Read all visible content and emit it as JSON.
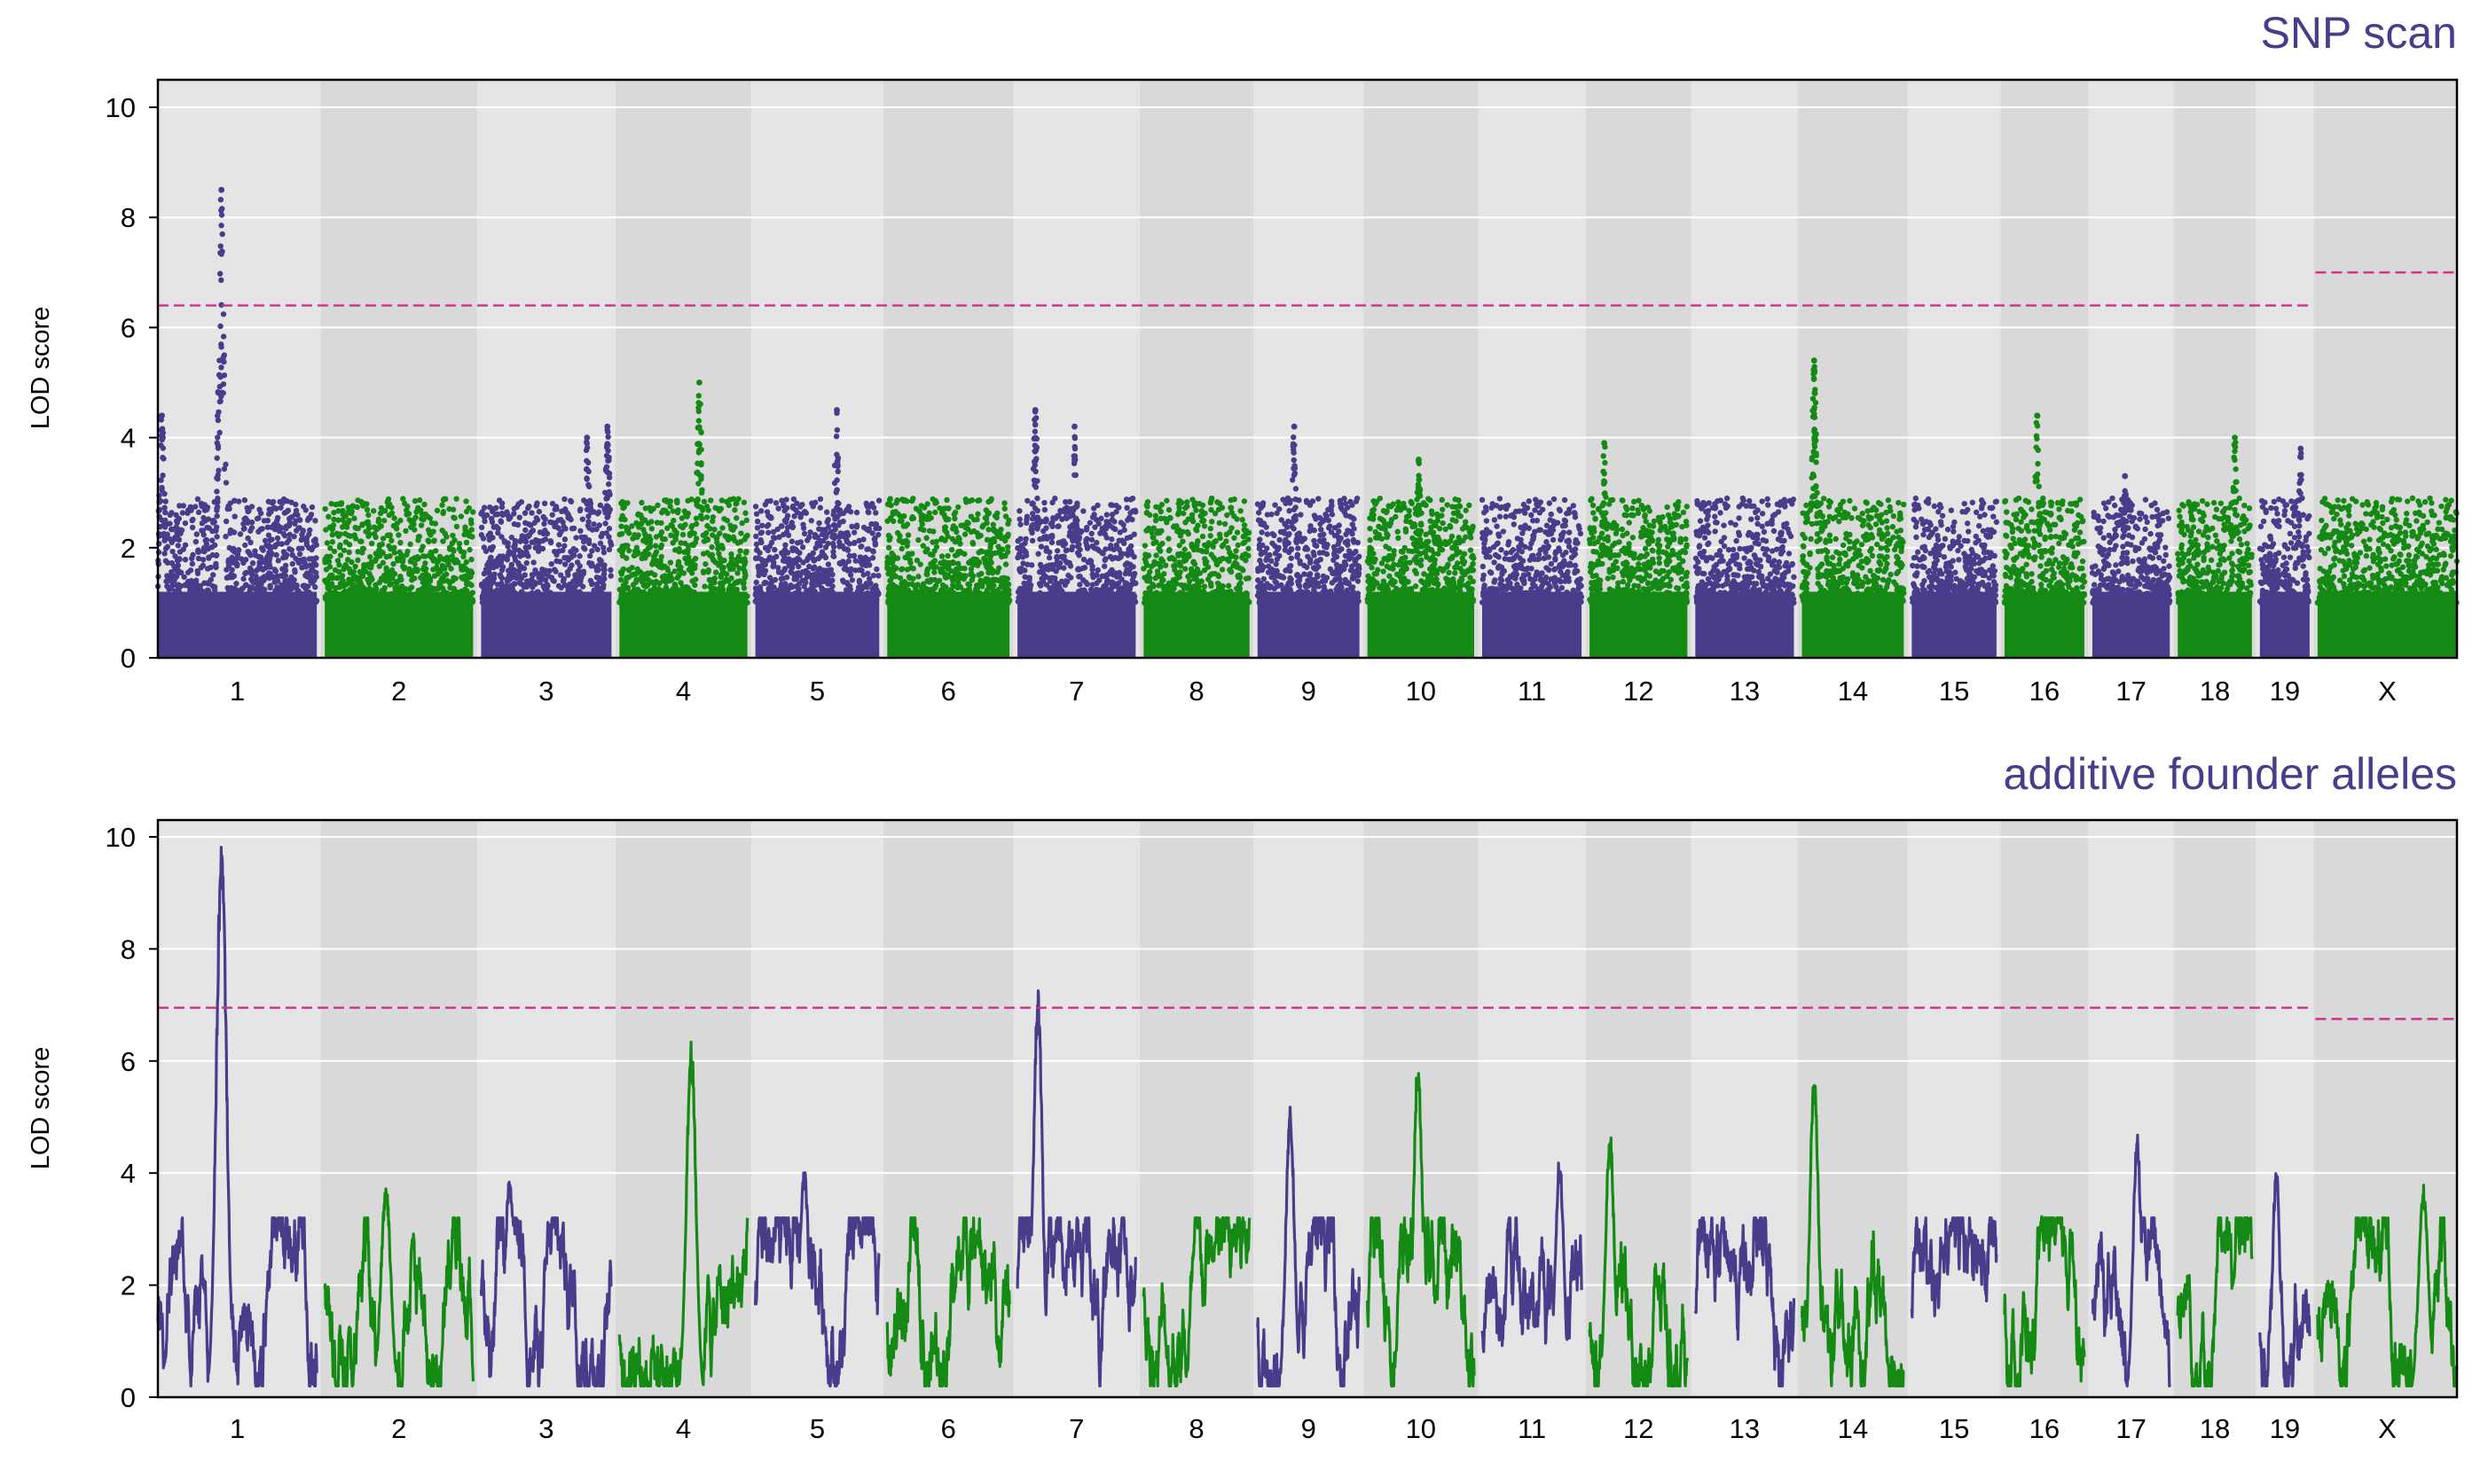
{
  "colors": {
    "purple": "#483D8B",
    "green": "#148A14",
    "threshold": "#D0308C",
    "panel_light": "#E5E5E5",
    "panel_dark": "#D9D9D9",
    "title": "#483D8B"
  },
  "chart_data": [
    {
      "type": "scatter",
      "title": "SNP scan",
      "ylabel": "LOD score",
      "xlabel": "",
      "ylim": [
        0,
        10.5
      ],
      "yticks": [
        0,
        2,
        4,
        6,
        8,
        10
      ],
      "grid": true,
      "chromosomes": [
        "1",
        "2",
        "3",
        "4",
        "5",
        "6",
        "7",
        "8",
        "9",
        "10",
        "11",
        "12",
        "13",
        "14",
        "15",
        "16",
        "17",
        "18",
        "19",
        "X"
      ],
      "chrom_lengths": [
        195,
        182,
        160,
        157,
        152,
        150,
        145,
        130,
        125,
        131,
        122,
        120,
        121,
        125,
        104,
        98,
        95,
        91,
        61,
        171
      ],
      "series_colors": [
        "purple",
        "green"
      ],
      "thresholds": {
        "autosome": 6.4,
        "X": 7.0
      },
      "peaks": [
        {
          "chrom": "1",
          "pos": 78,
          "lod": 8.5
        },
        {
          "chrom": "1",
          "pos": 5,
          "lod": 4.4
        },
        {
          "chrom": "3",
          "pos": 130,
          "lod": 4.0
        },
        {
          "chrom": "3",
          "pos": 155,
          "lod": 4.2
        },
        {
          "chrom": "4",
          "pos": 98,
          "lod": 5.0
        },
        {
          "chrom": "5",
          "pos": 100,
          "lod": 4.5
        },
        {
          "chrom": "7",
          "pos": 22,
          "lod": 4.5
        },
        {
          "chrom": "7",
          "pos": 70,
          "lod": 4.2
        },
        {
          "chrom": "9",
          "pos": 45,
          "lod": 4.2
        },
        {
          "chrom": "10",
          "pos": 63,
          "lod": 3.6
        },
        {
          "chrom": "12",
          "pos": 18,
          "lod": 3.9
        },
        {
          "chrom": "14",
          "pos": 15,
          "lod": 5.4
        },
        {
          "chrom": "16",
          "pos": 40,
          "lod": 4.4
        },
        {
          "chrom": "17",
          "pos": 40,
          "lod": 3.3
        },
        {
          "chrom": "18",
          "pos": 70,
          "lod": 4.0
        },
        {
          "chrom": "19",
          "pos": 50,
          "lod": 3.8
        }
      ]
    },
    {
      "type": "line",
      "title": "additive founder alleles",
      "ylabel": "LOD score",
      "xlabel": "",
      "ylim": [
        0,
        10.3
      ],
      "yticks": [
        0,
        2,
        4,
        6,
        8,
        10
      ],
      "grid": true,
      "chromosomes": [
        "1",
        "2",
        "3",
        "4",
        "5",
        "6",
        "7",
        "8",
        "9",
        "10",
        "11",
        "12",
        "13",
        "14",
        "15",
        "16",
        "17",
        "18",
        "19",
        "X"
      ],
      "chrom_lengths": [
        195,
        182,
        160,
        157,
        152,
        150,
        145,
        130,
        125,
        131,
        122,
        120,
        121,
        125,
        104,
        98,
        95,
        91,
        61,
        171
      ],
      "series_colors": [
        "purple",
        "green"
      ],
      "thresholds": {
        "autosome": 6.95,
        "X": 6.75
      },
      "peaks": [
        {
          "chrom": "1",
          "pos": 78,
          "lod": 10.0
        },
        {
          "chrom": "2",
          "pos": 75,
          "lod": 3.8
        },
        {
          "chrom": "3",
          "pos": 35,
          "lod": 4.0
        },
        {
          "chrom": "4",
          "pos": 88,
          "lod": 6.4
        },
        {
          "chrom": "5",
          "pos": 60,
          "lod": 4.1
        },
        {
          "chrom": "6",
          "pos": 110,
          "lod": 3.0
        },
        {
          "chrom": "7",
          "pos": 25,
          "lod": 7.3
        },
        {
          "chrom": "8",
          "pos": 118,
          "lod": 2.4
        },
        {
          "chrom": "9",
          "pos": 40,
          "lod": 5.2
        },
        {
          "chrom": "10",
          "pos": 62,
          "lod": 6.1
        },
        {
          "chrom": "11",
          "pos": 95,
          "lod": 4.3
        },
        {
          "chrom": "12",
          "pos": 25,
          "lod": 4.8
        },
        {
          "chrom": "13",
          "pos": 80,
          "lod": 2.8
        },
        {
          "chrom": "14",
          "pos": 15,
          "lod": 5.8
        },
        {
          "chrom": "15",
          "pos": 48,
          "lod": 3.2
        },
        {
          "chrom": "16",
          "pos": 45,
          "lod": 3.3
        },
        {
          "chrom": "17",
          "pos": 55,
          "lod": 4.8
        },
        {
          "chrom": "18",
          "pos": 55,
          "lod": 2.9
        },
        {
          "chrom": "19",
          "pos": 20,
          "lod": 4.2
        },
        {
          "chrom": "X",
          "pos": 130,
          "lod": 3.8
        }
      ]
    }
  ]
}
